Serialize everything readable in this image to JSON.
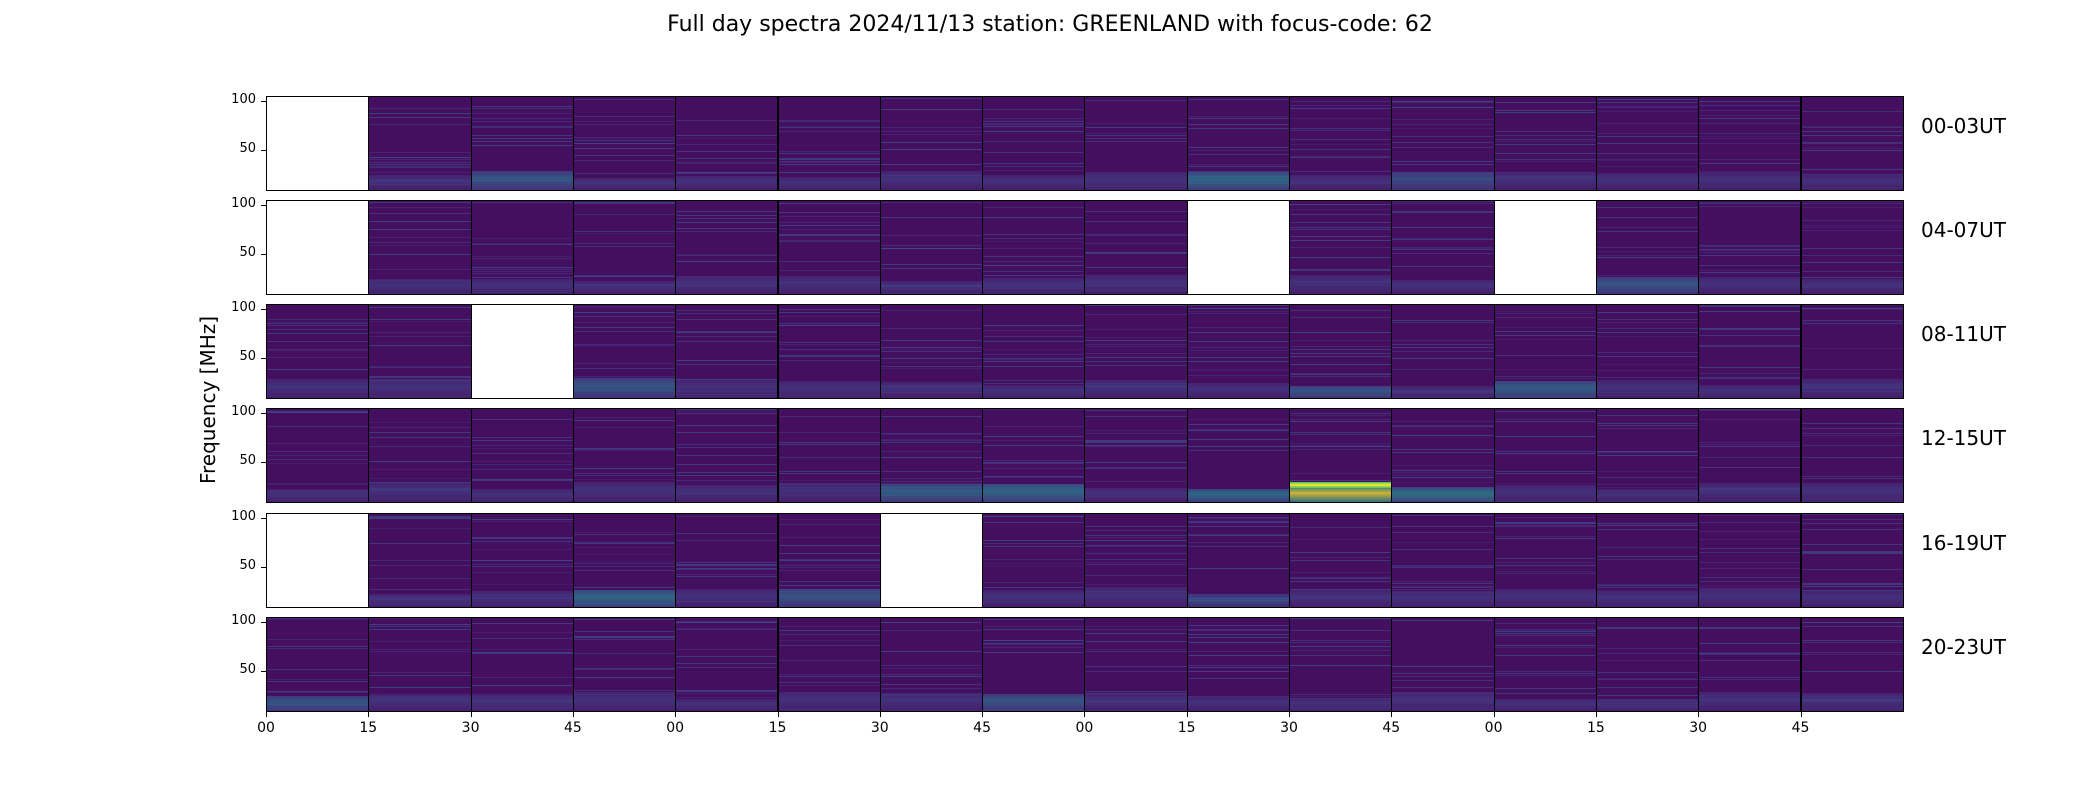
{
  "title": "Full day spectra 2024/11/13 station: GREENLAND with focus-code: 62",
  "chart_data": {
    "type": "heatmap",
    "title": "Full day spectra 2024/11/13 station: GREENLAND with focus-code: 62",
    "ylabel": "Frequency [MHz]",
    "y_ticks": [
      "50",
      "100"
    ],
    "x_ticks": [
      "00",
      "15",
      "30",
      "45",
      "00",
      "15",
      "30",
      "45",
      "00",
      "15",
      "30",
      "45",
      "00",
      "15",
      "30",
      "45"
    ],
    "panels_per_row": 16,
    "colormap": "viridis",
    "rows": [
      {
        "label": "00-03UT",
        "missing": [
          0
        ],
        "bright": [
          [
            2,
            0.35
          ],
          [
            9,
            0.45
          ],
          [
            11,
            0.3
          ]
        ]
      },
      {
        "label": "04-07UT",
        "missing": [
          0,
          9,
          12
        ],
        "bright": [
          [
            13,
            0.35
          ]
        ]
      },
      {
        "label": "08-11UT",
        "missing": [
          2
        ],
        "bright": [
          [
            3,
            0.35
          ],
          [
            10,
            0.35
          ],
          [
            12,
            0.4
          ]
        ]
      },
      {
        "label": "12-15UT",
        "missing": [],
        "bright": [
          [
            6,
            0.4
          ],
          [
            7,
            0.45
          ],
          [
            9,
            0.45
          ],
          [
            10,
            1.0
          ],
          [
            11,
            0.5
          ]
        ]
      },
      {
        "label": "16-19UT",
        "missing": [
          0,
          6
        ],
        "bright": [
          [
            3,
            0.45
          ],
          [
            5,
            0.35
          ],
          [
            9,
            0.3
          ]
        ]
      },
      {
        "label": "20-23UT",
        "missing": [],
        "bright": [
          [
            0,
            0.35
          ],
          [
            7,
            0.35
          ]
        ]
      }
    ]
  }
}
